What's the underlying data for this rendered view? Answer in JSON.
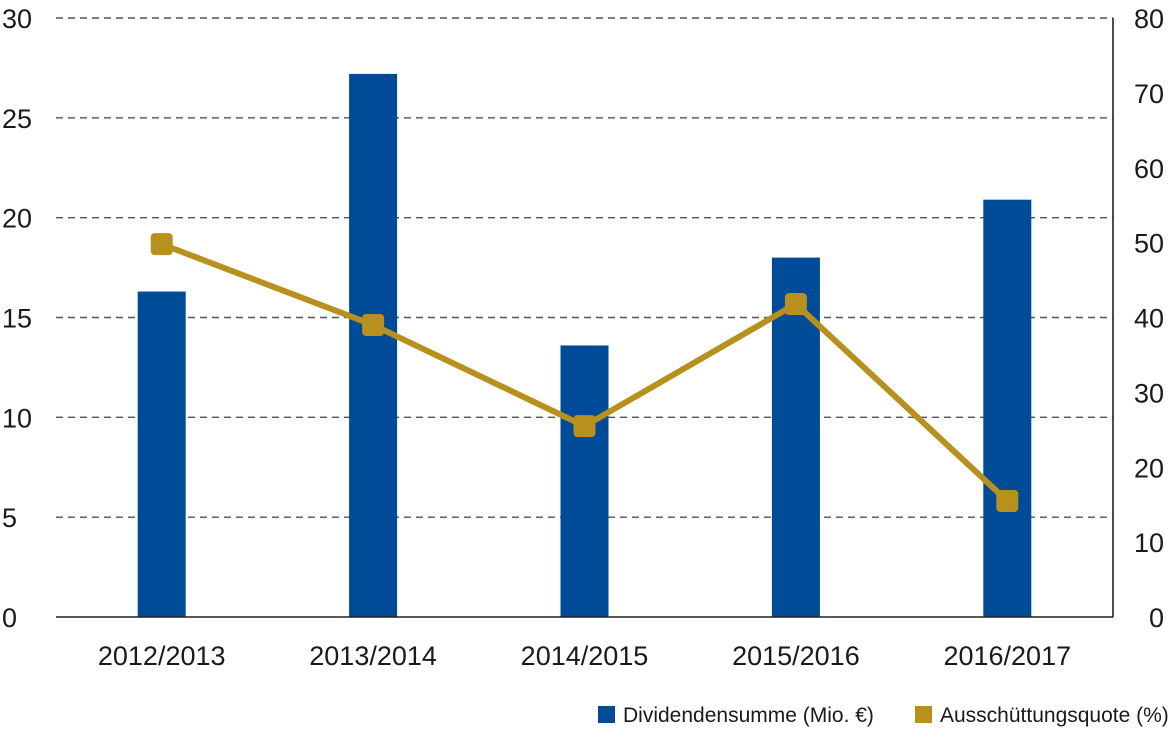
{
  "chart_data": {
    "type": "bar",
    "categories": [
      "2012/2013",
      "2013/2014",
      "2014/2015",
      "2015/2016",
      "2016/2017"
    ],
    "series": [
      {
        "name": "Dividendensumme (Mio. €)",
        "chart": "bar",
        "axis": "left",
        "color": "#004b97",
        "values": [
          16.3,
          27.2,
          13.6,
          18.0,
          20.9
        ]
      },
      {
        "name": "Ausschüttungsquote (%)",
        "chart": "line",
        "axis": "right",
        "color": "#b8901e",
        "values": [
          49.8,
          39.0,
          25.5,
          41.8,
          15.5
        ]
      }
    ],
    "y_left": {
      "ylim": [
        0,
        30
      ],
      "ticks": [
        "0",
        "5",
        "10",
        "15",
        "20",
        "25",
        "30"
      ]
    },
    "y_right": {
      "ylim": [
        0,
        80
      ],
      "ticks": [
        "0",
        "10",
        "20",
        "30",
        "40",
        "50",
        "60",
        "70",
        "80"
      ]
    },
    "grid": "dashed horizontal",
    "legend": "bottom-right"
  }
}
